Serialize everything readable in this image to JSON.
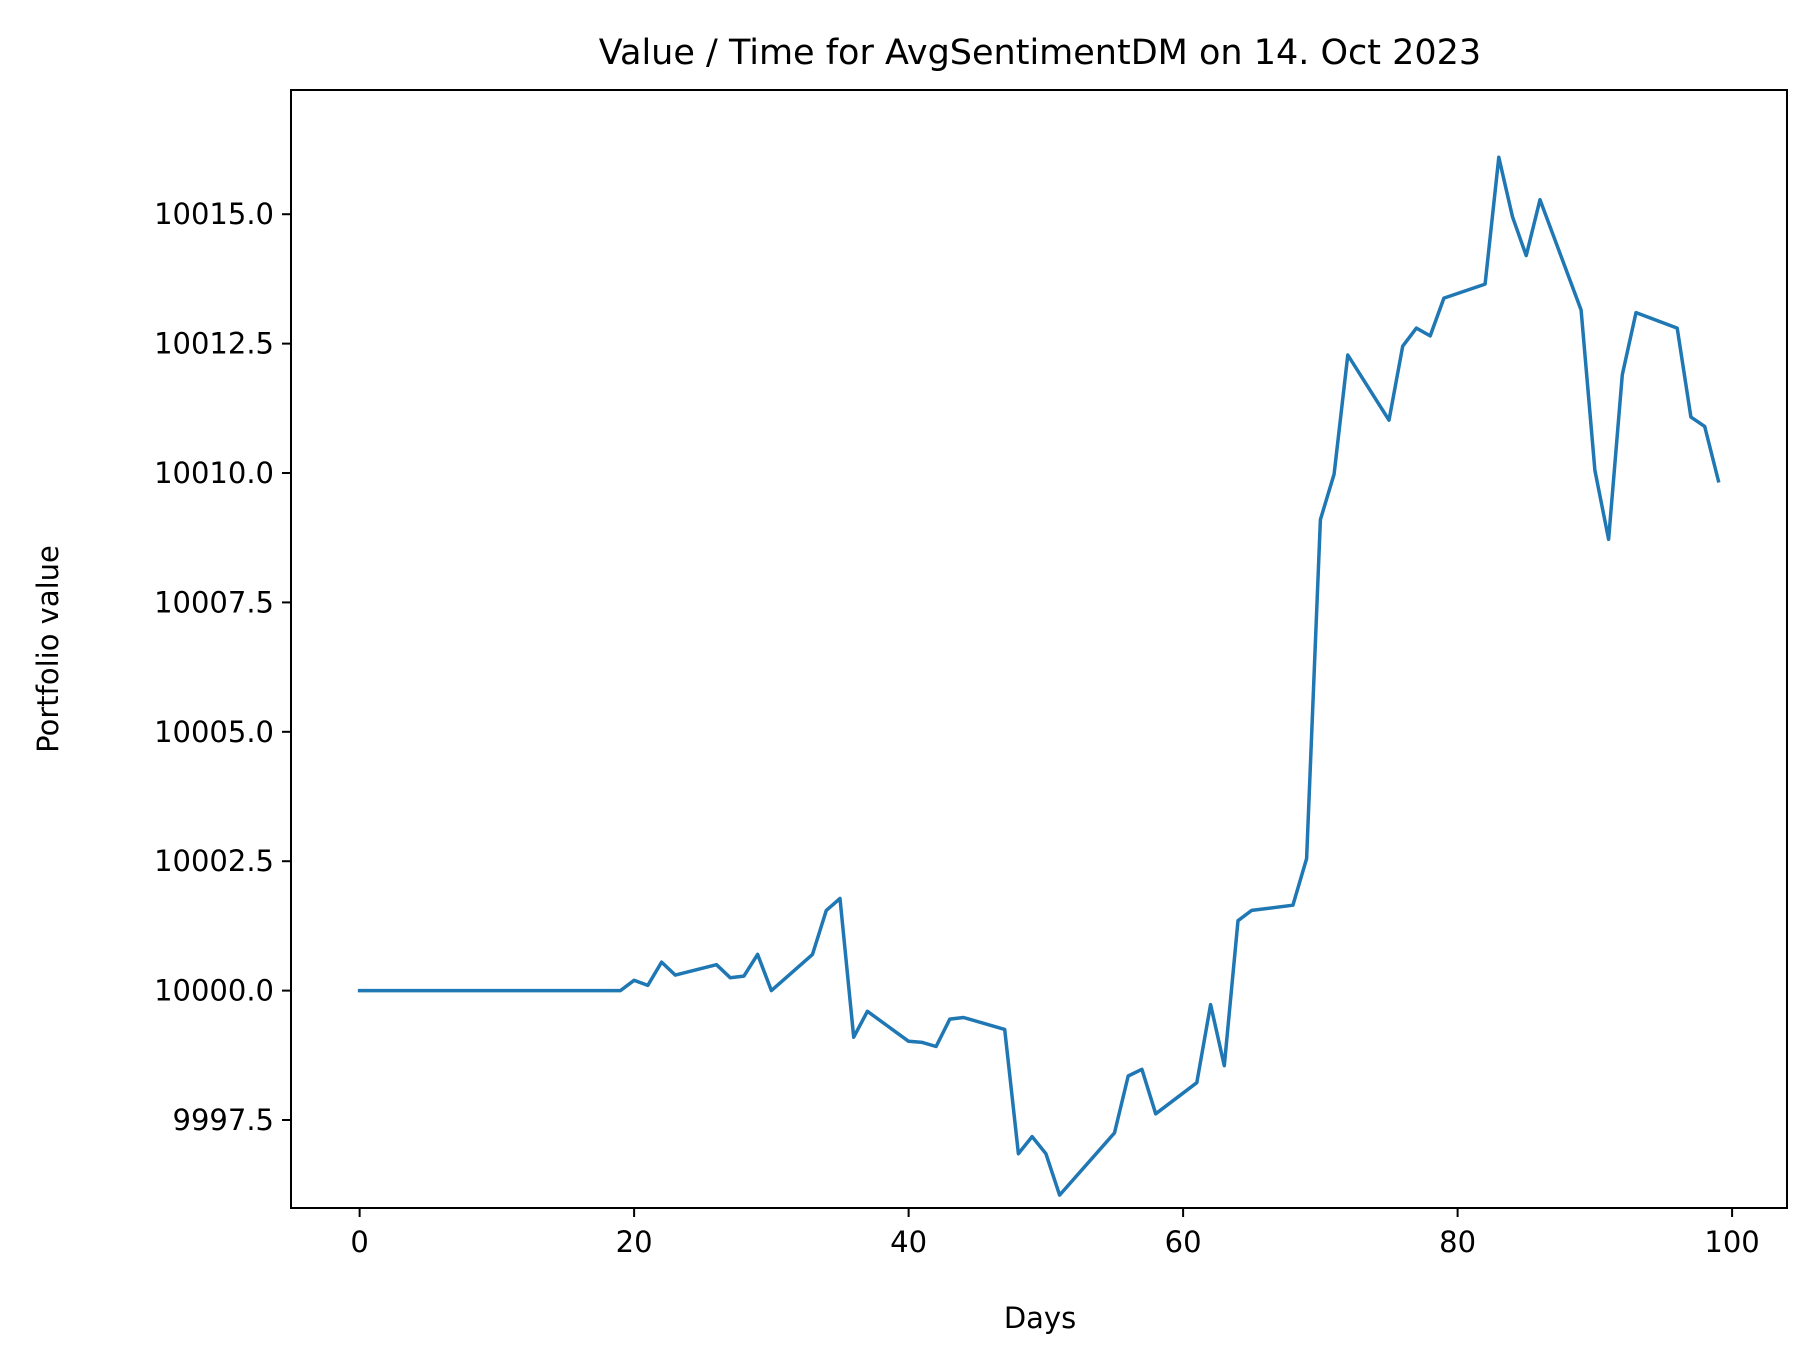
{
  "chart_data": {
    "type": "line",
    "title": "Value / Time for AvgSentimentDM on 14. Oct 2023",
    "xlabel": "Days",
    "ylabel": "Portfolio value",
    "xlim": [
      -5,
      104
    ],
    "ylim": [
      9995.8,
      10017.4
    ],
    "xticks": [
      0,
      20,
      40,
      60,
      80,
      100
    ],
    "yticks": [
      9997.5,
      10000.0,
      10002.5,
      10005.0,
      10007.5,
      10010.0,
      10012.5,
      10015.0
    ],
    "xtick_labels": [
      "0",
      "20",
      "40",
      "60",
      "80",
      "100"
    ],
    "ytick_labels": [
      "9997.5",
      "10000.0",
      "10002.5",
      "10005.0",
      "10007.5",
      "10010.0",
      "10012.5",
      "10015.0"
    ],
    "grid": false,
    "series": [
      {
        "color": "#1f77b4",
        "points": [
          [
            0,
            10000.0
          ],
          [
            19,
            10000.0
          ],
          [
            20,
            10000.2
          ],
          [
            21,
            10000.1
          ],
          [
            22,
            10000.55
          ],
          [
            23,
            10000.3
          ],
          [
            26,
            10000.5
          ],
          [
            27,
            10000.25
          ],
          [
            28,
            10000.28
          ],
          [
            29,
            10000.7
          ],
          [
            30,
            10000.0
          ],
          [
            33,
            10000.7
          ],
          [
            34,
            10001.55
          ],
          [
            35,
            10001.78
          ],
          [
            36,
            9999.1
          ],
          [
            37,
            9999.6
          ],
          [
            40,
            9999.02
          ],
          [
            41,
            9999.0
          ],
          [
            42,
            9998.92
          ],
          [
            43,
            9999.45
          ],
          [
            44,
            9999.48
          ],
          [
            47,
            9999.25
          ],
          [
            48,
            9996.85
          ],
          [
            49,
            9997.18
          ],
          [
            50,
            9996.85
          ],
          [
            51,
            9996.05
          ],
          [
            55,
            9997.25
          ],
          [
            56,
            9998.35
          ],
          [
            57,
            9998.48
          ],
          [
            58,
            9997.62
          ],
          [
            61,
            9998.22
          ],
          [
            62,
            9999.73
          ],
          [
            63,
            9998.55
          ],
          [
            64,
            10001.35
          ],
          [
            65,
            10001.55
          ],
          [
            68,
            10001.65
          ],
          [
            69,
            10002.55
          ],
          [
            70,
            10009.1
          ],
          [
            71,
            10009.98
          ],
          [
            72,
            10012.28
          ],
          [
            75,
            10011.02
          ],
          [
            76,
            10012.45
          ],
          [
            77,
            10012.8
          ],
          [
            78,
            10012.65
          ],
          [
            79,
            10013.38
          ],
          [
            82,
            10013.65
          ],
          [
            83,
            10016.1
          ],
          [
            84,
            10014.95
          ],
          [
            85,
            10014.2
          ],
          [
            86,
            10015.28
          ],
          [
            89,
            10013.15
          ],
          [
            90,
            10010.05
          ],
          [
            91,
            10008.72
          ],
          [
            92,
            10011.9
          ],
          [
            93,
            10013.1
          ],
          [
            96,
            10012.8
          ],
          [
            97,
            10011.08
          ],
          [
            98,
            10010.9
          ],
          [
            99,
            10009.85
          ]
        ]
      }
    ]
  }
}
